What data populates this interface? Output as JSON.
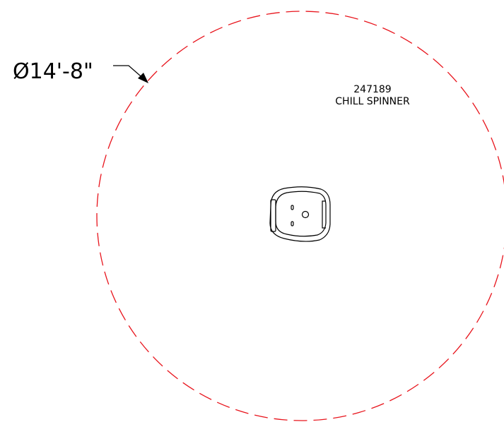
{
  "dimension": {
    "text": "Ø14'-8\""
  },
  "equipment": {
    "id": "247189",
    "name": "CHILL SPINNER"
  },
  "colors": {
    "clearance_circle": "#e8141c",
    "linework": "#000000",
    "background": "#ffffff"
  },
  "icons": {
    "equipment_symbol": "chill-spinner-plan-icon"
  }
}
